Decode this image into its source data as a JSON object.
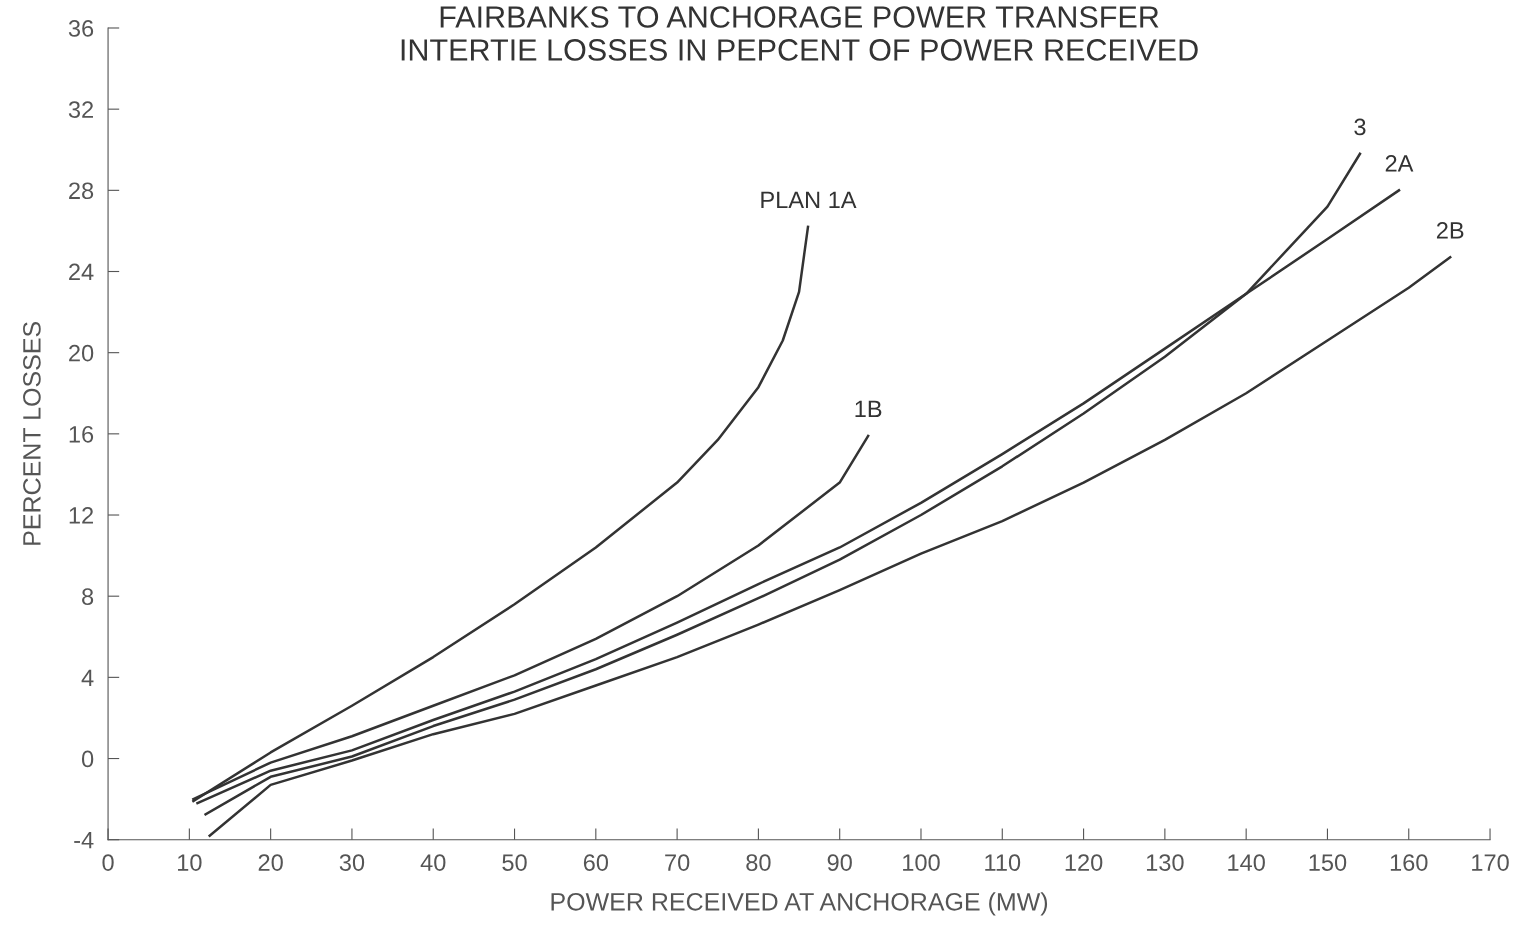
{
  "chart_data": {
    "type": "line",
    "title": "FAIRBANKS TO ANCHORAGE POWER TRANSFER\nINTERTIE LOSSES IN PEPCENT OF POWER RECEIVED",
    "xlabel": "POWER RECEIVED AT ANCHORAGE (MW)",
    "ylabel": "PERCENT LOSSES",
    "xlim": [
      0,
      170
    ],
    "ylim": [
      -4,
      36
    ],
    "xticks": [
      0,
      10,
      20,
      30,
      40,
      50,
      60,
      70,
      80,
      90,
      100,
      110,
      120,
      130,
      140,
      150,
      160,
      170
    ],
    "yticks": [
      -4,
      0,
      4,
      8,
      12,
      16,
      20,
      24,
      28,
      32,
      36
    ],
    "grid": false,
    "legend": false,
    "marker": "none",
    "line_style": "solid",
    "series": [
      {
        "name": "PLAN 1A",
        "color": "#333333",
        "x": [
          10.5,
          20,
          30,
          40,
          50,
          60,
          70,
          75,
          80,
          83,
          85,
          86.1
        ],
        "values": [
          -2.1,
          0.3,
          2.6,
          5.0,
          7.6,
          10.4,
          13.6,
          15.7,
          18.3,
          20.6,
          23.0,
          26.2
        ]
      },
      {
        "name": "1B",
        "color": "#333333",
        "x": [
          10.5,
          20,
          30,
          40,
          50,
          60,
          70,
          80,
          90,
          93.5
        ],
        "values": [
          -2.0,
          -0.2,
          1.1,
          2.6,
          4.1,
          5.9,
          8.0,
          10.5,
          13.6,
          15.9
        ]
      },
      {
        "name": "3",
        "color": "#333333",
        "x": [
          12,
          20,
          30,
          40,
          50,
          60,
          70,
          80,
          90,
          100,
          110,
          120,
          130,
          140,
          150,
          154
        ],
        "values": [
          -2.75,
          -0.9,
          0.1,
          1.6,
          2.9,
          4.4,
          6.1,
          7.9,
          9.8,
          12.0,
          14.4,
          17.0,
          19.8,
          22.9,
          27.2,
          29.8
        ]
      },
      {
        "name": "2A",
        "color": "#333333",
        "x": [
          11,
          20,
          30,
          40,
          50,
          60,
          70,
          80,
          90,
          100,
          110,
          120,
          130,
          140,
          150,
          158.8
        ],
        "values": [
          -2.2,
          -0.6,
          0.4,
          1.9,
          3.3,
          4.9,
          6.7,
          8.6,
          10.4,
          12.6,
          15.0,
          17.5,
          20.2,
          22.9,
          25.6,
          28.0
        ]
      },
      {
        "name": "2B",
        "color": "#333333",
        "x": [
          12.5,
          20,
          30,
          40,
          50,
          60,
          70,
          80,
          90,
          100,
          110,
          120,
          130,
          140,
          150,
          160,
          165.1
        ],
        "values": [
          -3.8,
          -1.3,
          -0.1,
          1.2,
          2.2,
          3.6,
          5.0,
          6.6,
          8.3,
          10.1,
          11.7,
          13.6,
          15.7,
          18.0,
          20.6,
          23.2,
          24.7
        ]
      }
    ]
  }
}
